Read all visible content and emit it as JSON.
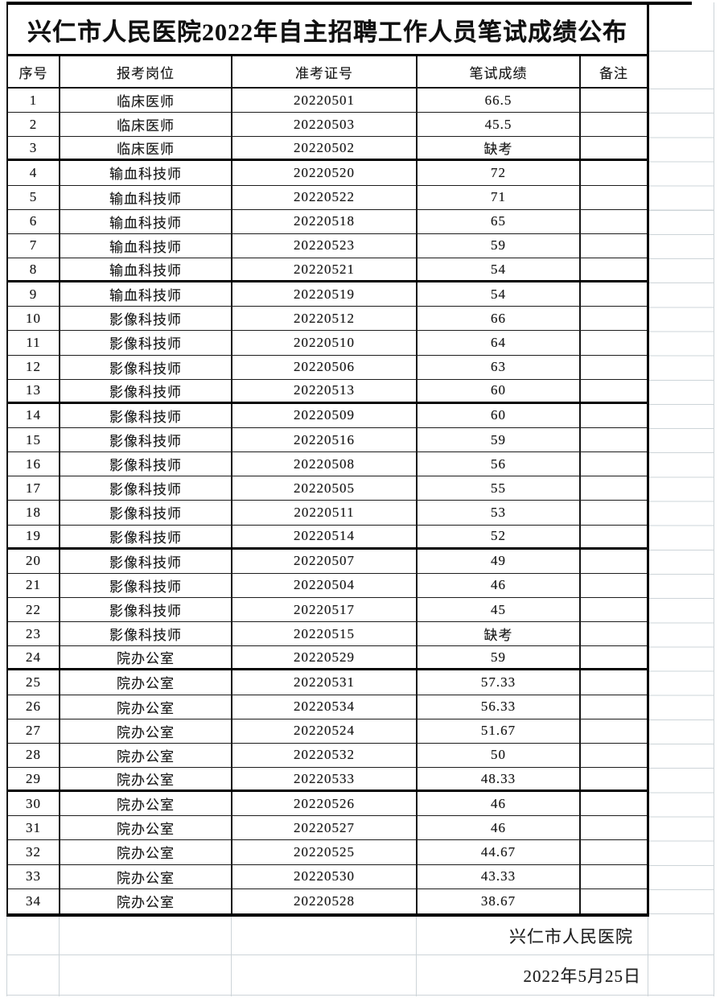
{
  "document": {
    "title": "兴仁市人民医院2022年自主招聘工作人员笔试成绩公布",
    "footer": {
      "org": "兴仁市人民医院",
      "date": "2022年5月25日"
    }
  },
  "table": {
    "headers": [
      "序号",
      "报考岗位",
      "准考证号",
      "笔试成绩",
      "备注"
    ],
    "rows": [
      {
        "no": "1",
        "position": "临床医师",
        "ticket": "20220501",
        "score": "66.5",
        "note": ""
      },
      {
        "no": "2",
        "position": "临床医师",
        "ticket": "20220503",
        "score": "45.5",
        "note": ""
      },
      {
        "no": "3",
        "position": "临床医师",
        "ticket": "20220502",
        "score": "缺考",
        "note": ""
      },
      {
        "no": "4",
        "position": "输血科技师",
        "ticket": "20220520",
        "score": "72",
        "note": ""
      },
      {
        "no": "5",
        "position": "输血科技师",
        "ticket": "20220522",
        "score": "71",
        "note": ""
      },
      {
        "no": "6",
        "position": "输血科技师",
        "ticket": "20220518",
        "score": "65",
        "note": ""
      },
      {
        "no": "7",
        "position": "输血科技师",
        "ticket": "20220523",
        "score": "59",
        "note": ""
      },
      {
        "no": "8",
        "position": "输血科技师",
        "ticket": "20220521",
        "score": "54",
        "note": ""
      },
      {
        "no": "9",
        "position": "输血科技师",
        "ticket": "20220519",
        "score": "54",
        "note": ""
      },
      {
        "no": "10",
        "position": "影像科技师",
        "ticket": "20220512",
        "score": "66",
        "note": ""
      },
      {
        "no": "11",
        "position": "影像科技师",
        "ticket": "20220510",
        "score": "64",
        "note": ""
      },
      {
        "no": "12",
        "position": "影像科技师",
        "ticket": "20220506",
        "score": "63",
        "note": ""
      },
      {
        "no": "13",
        "position": "影像科技师",
        "ticket": "20220513",
        "score": "60",
        "note": ""
      },
      {
        "no": "14",
        "position": "影像科技师",
        "ticket": "20220509",
        "score": "60",
        "note": ""
      },
      {
        "no": "15",
        "position": "影像科技师",
        "ticket": "20220516",
        "score": "59",
        "note": ""
      },
      {
        "no": "16",
        "position": "影像科技师",
        "ticket": "20220508",
        "score": "56",
        "note": ""
      },
      {
        "no": "17",
        "position": "影像科技师",
        "ticket": "20220505",
        "score": "55",
        "note": ""
      },
      {
        "no": "18",
        "position": "影像科技师",
        "ticket": "20220511",
        "score": "53",
        "note": ""
      },
      {
        "no": "19",
        "position": "影像科技师",
        "ticket": "20220514",
        "score": "52",
        "note": ""
      },
      {
        "no": "20",
        "position": "影像科技师",
        "ticket": "20220507",
        "score": "49",
        "note": ""
      },
      {
        "no": "21",
        "position": "影像科技师",
        "ticket": "20220504",
        "score": "46",
        "note": ""
      },
      {
        "no": "22",
        "position": "影像科技师",
        "ticket": "20220517",
        "score": "45",
        "note": ""
      },
      {
        "no": "23",
        "position": "影像科技师",
        "ticket": "20220515",
        "score": "缺考",
        "note": ""
      },
      {
        "no": "24",
        "position": "院办公室",
        "ticket": "20220529",
        "score": "59",
        "note": ""
      },
      {
        "no": "25",
        "position": "院办公室",
        "ticket": "20220531",
        "score": "57.33",
        "note": ""
      },
      {
        "no": "26",
        "position": "院办公室",
        "ticket": "20220534",
        "score": "56.33",
        "note": ""
      },
      {
        "no": "27",
        "position": "院办公室",
        "ticket": "20220524",
        "score": "51.67",
        "note": ""
      },
      {
        "no": "28",
        "position": "院办公室",
        "ticket": "20220532",
        "score": "50",
        "note": ""
      },
      {
        "no": "29",
        "position": "院办公室",
        "ticket": "20220533",
        "score": "48.33",
        "note": ""
      },
      {
        "no": "30",
        "position": "院办公室",
        "ticket": "20220526",
        "score": "46",
        "note": ""
      },
      {
        "no": "31",
        "position": "院办公室",
        "ticket": "20220527",
        "score": "46",
        "note": ""
      },
      {
        "no": "32",
        "position": "院办公室",
        "ticket": "20220525",
        "score": "44.67",
        "note": ""
      },
      {
        "no": "33",
        "position": "院办公室",
        "ticket": "20220530",
        "score": "43.33",
        "note": ""
      },
      {
        "no": "34",
        "position": "院办公室",
        "ticket": "20220528",
        "score": "38.67",
        "note": ""
      }
    ]
  }
}
